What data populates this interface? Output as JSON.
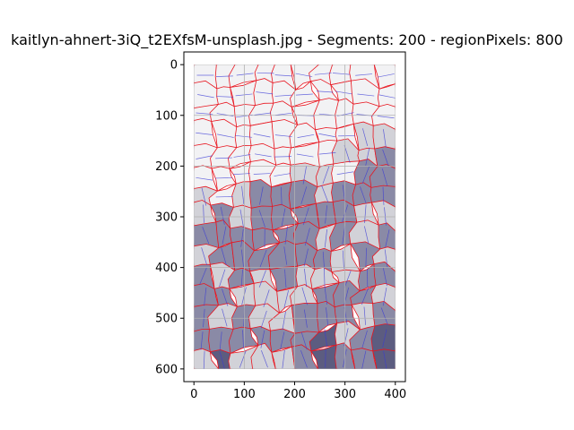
{
  "chart_data": {
    "type": "heatmap",
    "title": "kaitlyn-ahnert-3iQ_t2EXfsM-unsplash.jpg - Segments: 200 - regionPixels: 800",
    "xlabel": "",
    "ylabel": "",
    "xlim": [
      -20,
      420
    ],
    "ylim": [
      625,
      -25
    ],
    "xticks": [
      0,
      100,
      200,
      300,
      400
    ],
    "yticks": [
      0,
      100,
      200,
      300,
      400,
      500,
      600
    ],
    "image_extent": {
      "width": 400,
      "height": 600
    },
    "grid": true,
    "colors": {
      "light_region": "#f2f2f4",
      "mid_region": "#d2d2d8",
      "dark_region": "#8a8aa6",
      "darkest_region": "#5c5c80",
      "segment_border": "#e8141e",
      "orientation_line": "#3a3ad6",
      "grid": "#b0b0b0"
    }
  }
}
